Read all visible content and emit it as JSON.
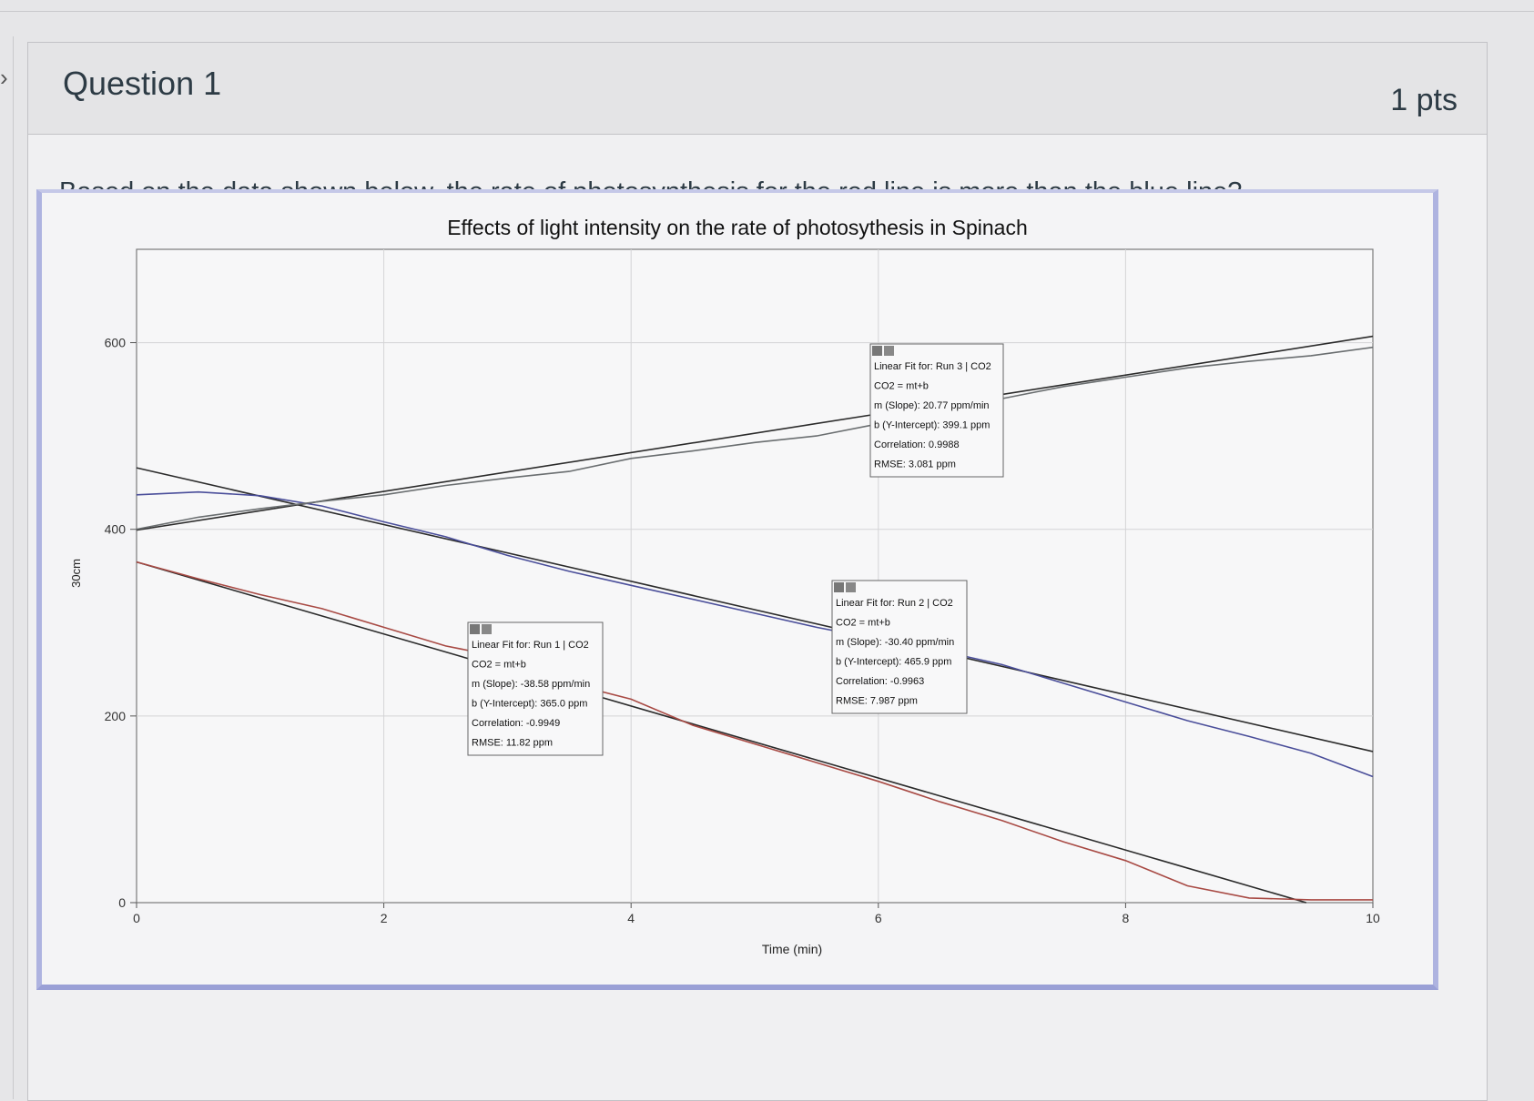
{
  "question": {
    "title": "Question 1",
    "points": "1 pts",
    "prompt": "Based on the data shown below, the rate of photosynthesis for the red line is more than the blue line?"
  },
  "chart_data": {
    "type": "line",
    "title": "Effects of light intensity on the rate of photosythesis in Spinach",
    "xlabel": "Time (min)",
    "ylabel": "30cm",
    "xlim": [
      0,
      10
    ],
    "ylim": [
      0,
      700
    ],
    "x_ticks": [
      "0",
      "2",
      "4",
      "6",
      "8",
      "10"
    ],
    "y_ticks": [
      "0",
      "200",
      "400",
      "600"
    ],
    "grid": true,
    "series": [
      {
        "color": "#a84a44",
        "x": [
          0,
          0.5,
          1,
          1.5,
          2,
          2.5,
          3,
          3.5,
          4,
          4.5,
          5,
          5.5,
          6,
          6.5,
          7,
          7.5,
          8,
          8.5,
          9,
          9.5,
          10
        ],
        "values": [
          365,
          347,
          330,
          315,
          295,
          275,
          262,
          235,
          218,
          190,
          170,
          150,
          130,
          108,
          88,
          65,
          45,
          18,
          5,
          3,
          3
        ]
      },
      {
        "color": "#4a4e9a",
        "x": [
          0,
          0.5,
          1,
          1.5,
          2,
          2.5,
          3,
          3.5,
          4,
          4.5,
          5,
          5.5,
          6,
          6.5,
          7,
          7.5,
          8,
          8.5,
          9,
          9.5,
          10
        ],
        "values": [
          437,
          440,
          436,
          425,
          408,
          392,
          372,
          355,
          340,
          325,
          310,
          295,
          282,
          270,
          255,
          235,
          215,
          195,
          178,
          160,
          135
        ]
      },
      {
        "color": "#6a6e70",
        "x": [
          0,
          0.5,
          1,
          1.5,
          2,
          2.5,
          3,
          3.5,
          4,
          4.5,
          5,
          5.5,
          6,
          6.5,
          7,
          7.5,
          8,
          8.5,
          9,
          9.5,
          10
        ],
        "values": [
          400,
          413,
          422,
          430,
          437,
          447,
          455,
          462,
          476,
          484,
          493,
          500,
          513,
          527,
          540,
          553,
          563,
          573,
          580,
          586,
          595
        ]
      }
    ],
    "fits": [
      {
        "color": "#2b2b2b",
        "slope": -38.58,
        "intercept": 365.0,
        "lines": [
          "Linear Fit for: Run 1 | CO2",
          "CO2 = mt+b",
          "m (Slope): -38.58 ppm/min",
          "b (Y-Intercept): 365.0 ppm",
          "Correlation: -0.9949",
          "RMSE: 11.82 ppm"
        ]
      },
      {
        "color": "#2b2b2b",
        "slope": -30.4,
        "intercept": 465.9,
        "lines": [
          "Linear Fit for: Run 2 | CO2",
          "CO2 = mt+b",
          "m (Slope): -30.40 ppm/min",
          "b (Y-Intercept): 465.9 ppm",
          "Correlation: -0.9963",
          "RMSE: 7.987 ppm"
        ]
      },
      {
        "color": "#2b2b2b",
        "slope": 20.77,
        "intercept": 399.1,
        "lines": [
          "Linear Fit for: Run 3 | CO2",
          "CO2 = mt+b",
          "m (Slope): 20.77 ppm/min",
          "b (Y-Intercept): 399.1 ppm",
          "Correlation: 0.9988",
          "RMSE: 3.081 ppm"
        ]
      }
    ]
  }
}
